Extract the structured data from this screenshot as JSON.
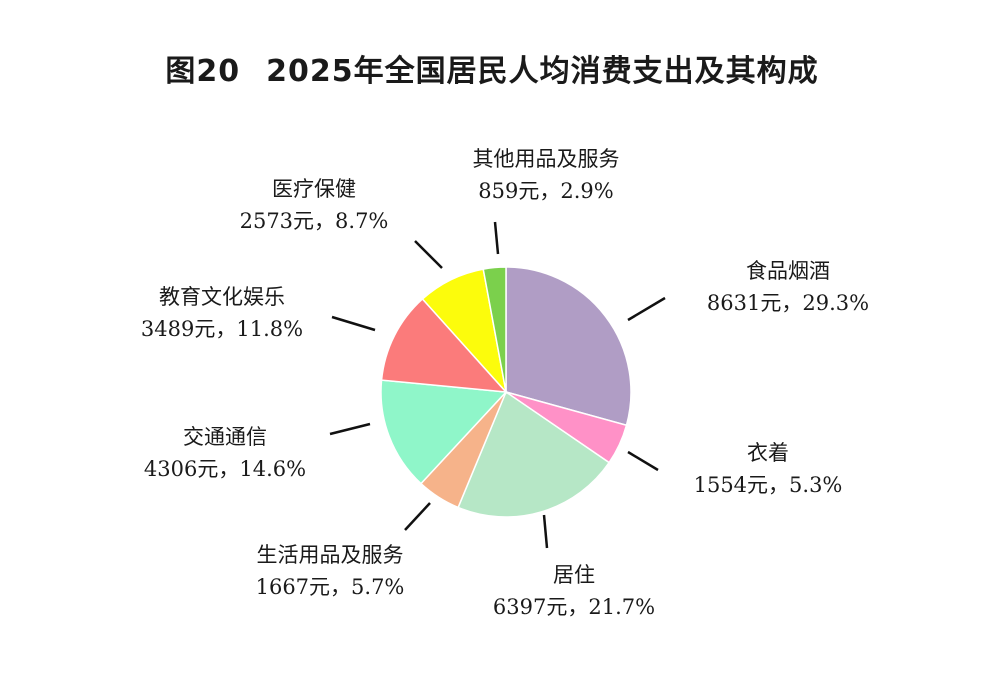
{
  "title": {
    "figure_no": "图20",
    "text": "2025年全国居民人均消费支出及其构成"
  },
  "chart_data": {
    "type": "pie",
    "title": "2025年全国居民人均消费支出及其构成",
    "unit": "元",
    "start": "12 o'clock",
    "direction": "clockwise",
    "slices": [
      {
        "name": "食品烟酒",
        "value": 8631,
        "percent": 29.3,
        "value_label": "8631元，29.3%",
        "color": "#b09dc5"
      },
      {
        "name": "衣着",
        "value": 1554,
        "percent": 5.3,
        "value_label": "1554元，5.3%",
        "color": "#ff91c7"
      },
      {
        "name": "居住",
        "value": 6397,
        "percent": 21.7,
        "value_label": "6397元，21.7%",
        "color": "#b6e7c6"
      },
      {
        "name": "生活用品及服务",
        "value": 1667,
        "percent": 5.7,
        "value_label": "1667元，5.7%",
        "color": "#f6b38a"
      },
      {
        "name": "交通通信",
        "value": 4306,
        "percent": 14.6,
        "value_label": "4306元，14.6%",
        "color": "#8ff6c9"
      },
      {
        "name": "教育文化娱乐",
        "value": 3489,
        "percent": 11.8,
        "value_label": "3489元，11.8%",
        "color": "#fb7b7b"
      },
      {
        "name": "医疗保健",
        "value": 2573,
        "percent": 8.7,
        "value_label": "2573元，8.7%",
        "color": "#fcfc0c"
      },
      {
        "name": "其他用品及服务",
        "value": 859,
        "percent": 2.9,
        "value_label": "859元，2.9%",
        "color": "#7bd04c"
      }
    ]
  }
}
